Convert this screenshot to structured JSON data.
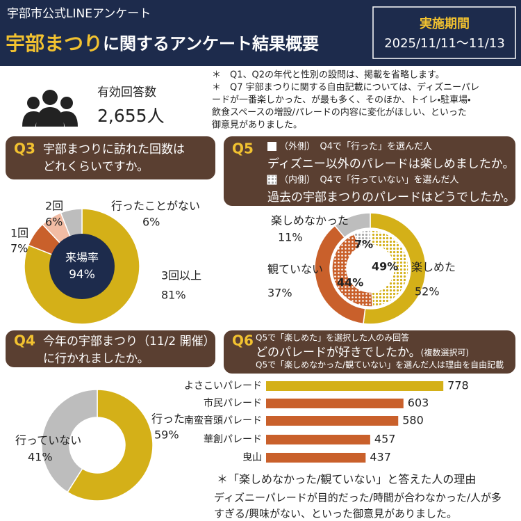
{
  "header": {
    "subtitle": "宇部市公式LINEアンケート",
    "title_main": "宇部まつり",
    "title_rest": "に関するアンケート結果概要",
    "period_label": "実施期間",
    "period": "2025/11/11～11/13"
  },
  "respondents": {
    "label": "有効回答数",
    "count": "2,655人"
  },
  "notes": [
    [
      "＊　Q1、Q2の年代と性別の設問は、掲載を省略します。"
    ],
    [
      "＊　Q7 宇部まつりに関する自由記載については、ディズニーパレ",
      "ードが一番楽しかった、が最も多く、そのほか、トイレ・駐車場・",
      "飲食スペースの増設/パレードの内容に変化がほしい、といった",
      "御意見がありました。"
    ]
  ],
  "chart_data": [
    {
      "type": "pie",
      "number": "Q3",
      "title": [
        "宇部まつりに訪れた回数は",
        "どれくらいですか。"
      ],
      "categories": [
        "3回以上",
        "1回",
        "2回",
        "行ったことがない"
      ],
      "values": [
        81,
        7,
        6,
        6
      ],
      "value_labels": [
        "81%",
        "7%",
        "6%",
        "6%"
      ],
      "colors": [
        "#d4b018",
        "#c9602b",
        "#f2bca4",
        "#bdbdbd"
      ],
      "center_label": "来場率",
      "center_value": 94,
      "center_value_label": "94%"
    },
    {
      "type": "nested-donut",
      "number": "Q5",
      "categories": [
        "楽しめた",
        "観ていない",
        "楽しめなかった"
      ],
      "colors": [
        "#d4b018",
        "#c9602b",
        "#bdbdbd"
      ],
      "series": [
        {
          "name": "（外側）　Q4で「行った」を選んだ人",
          "question": "ディズニー以外のパレードは楽しめましたか。",
          "values": [
            52,
            37,
            11
          ],
          "value_labels": [
            "52%",
            "37%",
            "11%"
          ]
        },
        {
          "name": "（内側）　Q4で「行っていない」を選んだ人",
          "question": "過去の宇部まつりのパレードはどうでしたか。",
          "values": [
            49,
            44,
            7
          ],
          "value_labels": [
            "49%",
            "44%",
            "7%"
          ]
        }
      ]
    },
    {
      "type": "pie",
      "number": "Q4",
      "title": [
        "今年の宇部まつり（11/2 開催）",
        "に行かれましたか。"
      ],
      "categories": [
        "行った",
        "行っていない"
      ],
      "values": [
        59,
        41
      ],
      "value_labels": [
        "59%",
        "41%"
      ],
      "colors": [
        "#d4b018",
        "#bdbdbd"
      ]
    },
    {
      "type": "bar",
      "number": "Q6",
      "note": "Q5で「楽しめた」を選択した人のみ回答",
      "title": "どのパレードが好きでしたか。",
      "title_note": "(複数選択可)",
      "note2": "Q5で「楽しめなかった/観ていない」を選んだ人は理由を自由記載",
      "categories": [
        "よさこいパレード",
        "市民パレード",
        "南蛮音頭パレード",
        "華創パレード",
        "曳山"
      ],
      "values": [
        778,
        603,
        580,
        457,
        437
      ],
      "colors": [
        "#d4b018",
        "#c9602b",
        "#c9602b",
        "#c9602b",
        "#c9602b"
      ]
    }
  ],
  "footer": {
    "heading": "＊「楽しめなかった/観ていない」と答えた人の理由",
    "lines": [
      "ディズニーパレードが目的だった/時間が合わなかった/人が多",
      "すぎる/興味がない、といった御意見がありました。"
    ]
  }
}
